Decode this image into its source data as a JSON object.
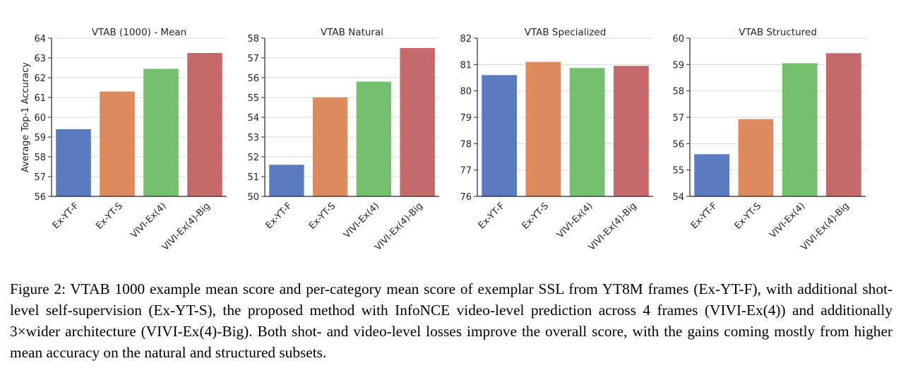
{
  "chart_data": [
    {
      "type": "bar",
      "title": "VTAB (1000) - Mean",
      "ylabel": "Average Top-1 Accuracy",
      "categories": [
        "Ex-YT-F",
        "Ex-YT-S",
        "VIVI-Ex(4)",
        "VIVI-Ex(4)-Big"
      ],
      "values": [
        59.4,
        61.3,
        62.45,
        63.25
      ],
      "ylim": [
        56,
        64
      ],
      "yticks": [
        56,
        57,
        58,
        59,
        60,
        61,
        62,
        63,
        64
      ],
      "grid": true
    },
    {
      "type": "bar",
      "title": "VTAB Natural",
      "ylabel": "",
      "categories": [
        "Ex-YT-F",
        "Ex-YT-S",
        "VIVI-Ex(4)",
        "VIVI-Ex(4)-Big"
      ],
      "values": [
        51.6,
        55.0,
        55.8,
        57.5
      ],
      "ylim": [
        50,
        58
      ],
      "yticks": [
        50,
        51,
        52,
        53,
        54,
        55,
        56,
        57,
        58
      ],
      "grid": true
    },
    {
      "type": "bar",
      "title": "VTAB Specialized",
      "ylabel": "",
      "categories": [
        "Ex-YT-F",
        "Ex-YT-S",
        "VIVI-Ex(4)",
        "VIVI-Ex(4)-Big"
      ],
      "values": [
        80.6,
        81.1,
        80.87,
        80.95
      ],
      "ylim": [
        76,
        82
      ],
      "yticks": [
        76,
        77,
        78,
        79,
        80,
        81,
        82
      ],
      "grid": true
    },
    {
      "type": "bar",
      "title": "VTAB Structured",
      "ylabel": "",
      "categories": [
        "Ex-YT-F",
        "Ex-YT-S",
        "VIVI-Ex(4)",
        "VIVI-Ex(4)-Big"
      ],
      "values": [
        55.6,
        56.93,
        59.05,
        59.43
      ],
      "ylim": [
        54,
        60
      ],
      "yticks": [
        54,
        55,
        56,
        57,
        58,
        59,
        60
      ],
      "grid": true
    }
  ],
  "colors": [
    "#5b7bc0",
    "#dd8a5e",
    "#74c06e",
    "#c56a6b"
  ],
  "caption": "Figure 2: VTAB 1000 example mean score and per-category mean score of exemplar SSL from YT8M frames (Ex-YT-F), with additional shot-level self-supervision (Ex-YT-S), the proposed method with InfoNCE video-level prediction across 4 frames (VIVI-Ex(4)) and additionally 3×wider architecture (VIVI-Ex(4)-Big). Both shot- and video-level losses improve the overall score, with the gains coming mostly from higher mean accuracy on the natural and structured subsets."
}
